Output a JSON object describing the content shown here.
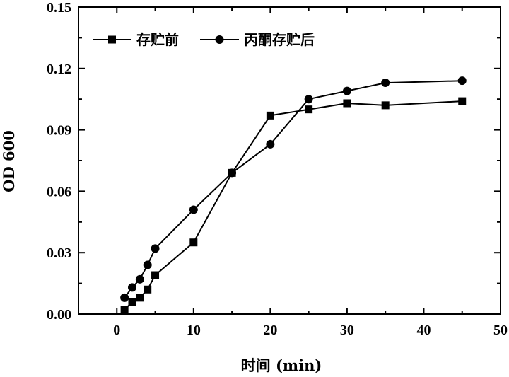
{
  "chart_data": {
    "type": "line",
    "title": "",
    "xlabel": "时间 (min)",
    "ylabel": "OD 600",
    "xlim": [
      -5,
      50
    ],
    "ylim": [
      0,
      0.15
    ],
    "xticks": [
      "0",
      "10",
      "20",
      "30",
      "40",
      "50"
    ],
    "yticks": [
      "0.00",
      "0.03",
      "0.06",
      "0.09",
      "0.12",
      "0.15"
    ],
    "grid": false,
    "legend_position": "top-left",
    "series": [
      {
        "name": "存贮前",
        "marker": "square",
        "color": "#000000",
        "x": [
          1,
          2,
          3,
          4,
          5,
          10,
          15,
          20,
          25,
          30,
          35,
          45
        ],
        "y": [
          0.002,
          0.006,
          0.008,
          0.012,
          0.019,
          0.035,
          0.069,
          0.097,
          0.1,
          0.103,
          0.102,
          0.104
        ]
      },
      {
        "name": "丙酮存贮后",
        "marker": "circle",
        "color": "#000000",
        "x": [
          1,
          2,
          3,
          4,
          5,
          10,
          15,
          20,
          25,
          30,
          35,
          45
        ],
        "y": [
          0.008,
          0.013,
          0.017,
          0.024,
          0.032,
          0.051,
          0.069,
          0.083,
          0.105,
          0.109,
          0.113,
          0.114
        ]
      }
    ]
  }
}
